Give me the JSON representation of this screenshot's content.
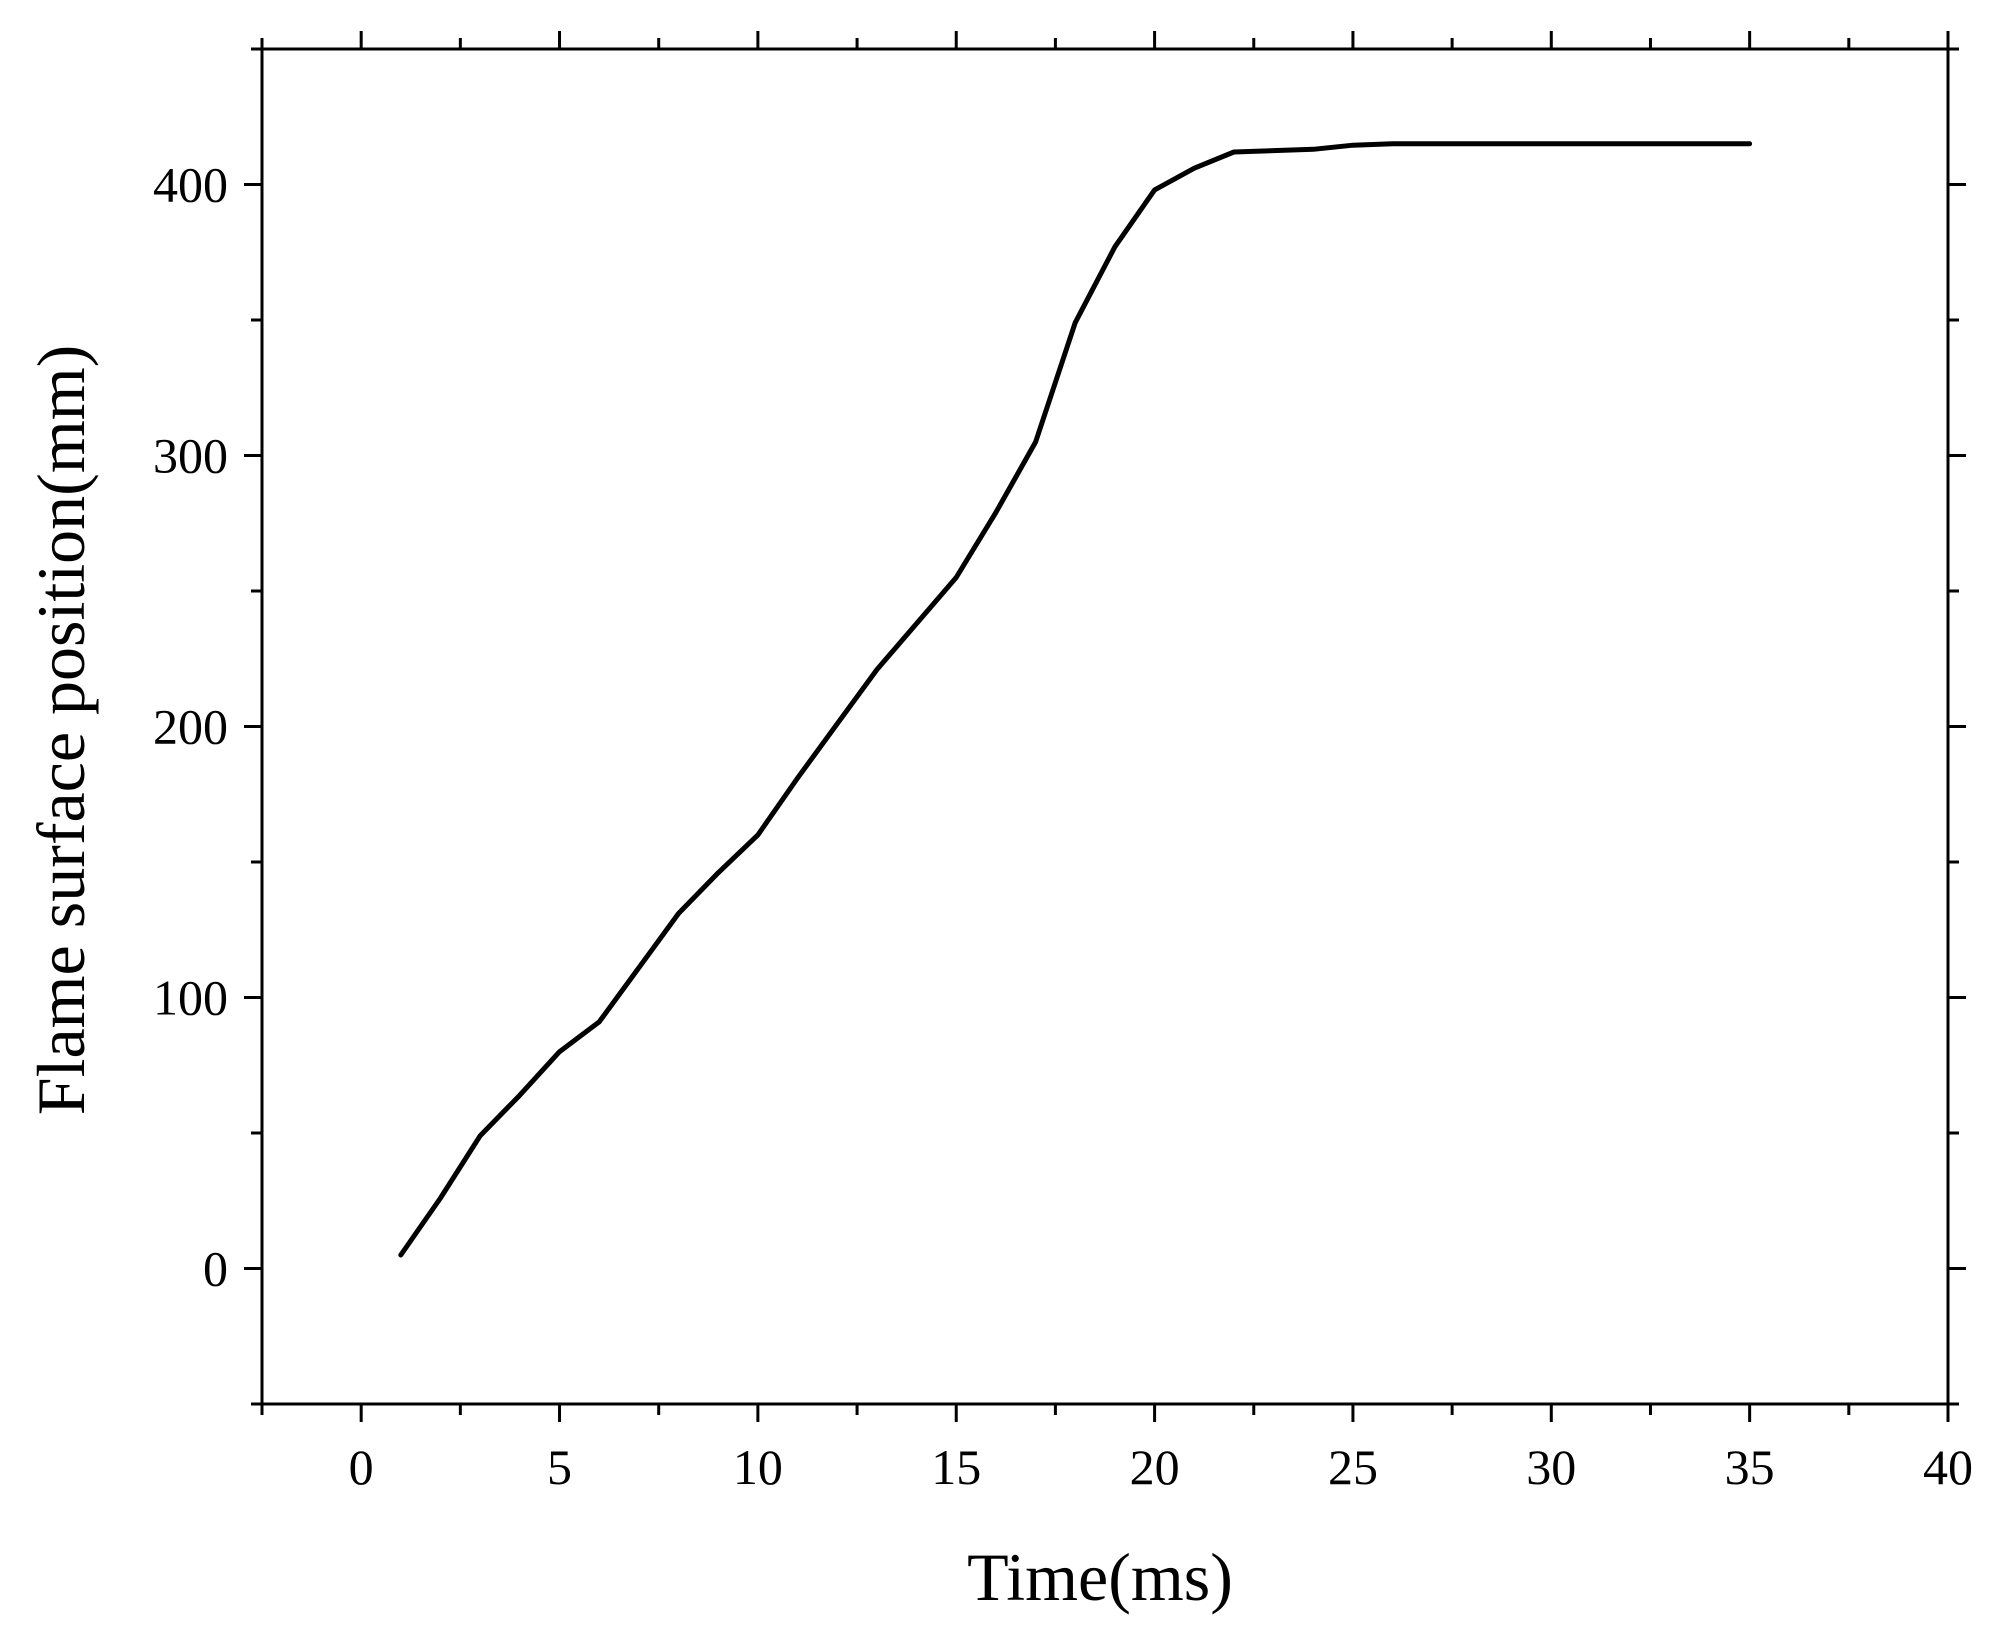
{
  "chart_data": {
    "type": "line",
    "title": "",
    "xlabel": "Time(ms)",
    "ylabel": "Flame surface position(mm)",
    "xlim": [
      -2.5,
      40
    ],
    "ylim": [
      -50,
      450
    ],
    "xticks": [
      0,
      5,
      10,
      15,
      20,
      25,
      30,
      35,
      40
    ],
    "xtick_labels": [
      "0",
      "5",
      "10",
      "15",
      "20",
      "25",
      "30",
      "35",
      "40"
    ],
    "yticks": [
      0,
      100,
      200,
      300,
      400
    ],
    "ytick_labels": [
      "0",
      "100",
      "200",
      "300",
      "400"
    ],
    "grid": false,
    "legend": "none",
    "colors": {
      "line": "#000000",
      "axes": "#000000",
      "background": "#ffffff"
    },
    "series": [
      {
        "x": [
          1,
          2,
          3,
          4,
          5,
          6,
          7,
          8,
          9,
          10,
          11,
          12,
          13,
          14,
          15,
          16,
          17,
          18,
          19,
          20,
          21,
          22,
          23,
          24,
          25,
          26,
          27,
          28,
          29,
          30,
          31,
          32,
          33,
          34,
          35
        ],
        "y": [
          5,
          26,
          49,
          64,
          80,
          91,
          111,
          131,
          146,
          160,
          181,
          201,
          221,
          238,
          255,
          279,
          305,
          349,
          377,
          398,
          406,
          412,
          412.5,
          413,
          414.5,
          415,
          415,
          415,
          415,
          415,
          415,
          415,
          415,
          415,
          415
        ]
      }
    ]
  }
}
